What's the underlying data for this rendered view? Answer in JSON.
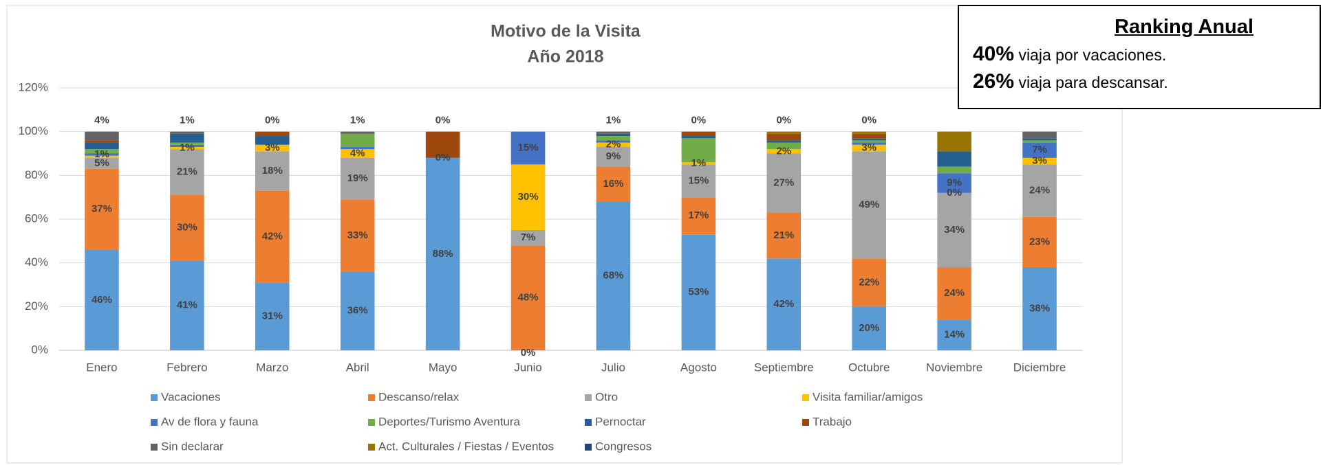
{
  "chart_data": {
    "type": "stacked_bar",
    "title": "Motivo de la Visita",
    "subtitle": "Año 2018",
    "categories": [
      "Enero",
      "Febrero",
      "Marzo",
      "Abril",
      "Mayo",
      "Junio",
      "Julio",
      "Agosto",
      "Septiembre",
      "Octubre",
      "Noviembre",
      "Diciembre"
    ],
    "ylim": [
      0,
      120
    ],
    "yticks": [
      {
        "value": 0,
        "label": "0%"
      },
      {
        "value": 20,
        "label": "20%"
      },
      {
        "value": 40,
        "label": "40%"
      },
      {
        "value": 60,
        "label": "60%"
      },
      {
        "value": 80,
        "label": "80%"
      },
      {
        "value": 100,
        "label": "100%"
      },
      {
        "value": 120,
        "label": "120%"
      }
    ],
    "grid": true,
    "legend": "bottom",
    "series": [
      {
        "name": "Vacaciones",
        "color": "#5b9bd5",
        "values": [
          46,
          41,
          31,
          36,
          88,
          0,
          68,
          53,
          42,
          20,
          14,
          38
        ],
        "value_labels": [
          "46%",
          "41%",
          "31%",
          "36%",
          "88%",
          "0%",
          "68%",
          "53%",
          "42%",
          "20%",
          "14%",
          "38%"
        ]
      },
      {
        "name": "Descanso/relax",
        "color": "#ed7d31",
        "values": [
          37,
          30,
          42,
          33,
          0,
          48,
          16,
          17,
          21,
          22,
          24,
          23
        ],
        "value_labels": [
          "37%",
          "30%",
          "42%",
          "33%",
          "0%",
          "48%",
          "16%",
          "17%",
          "21%",
          "22%",
          "24%",
          "23%"
        ]
      },
      {
        "name": "Otro",
        "color": "#a5a5a5",
        "values": [
          5,
          21,
          18,
          19,
          0,
          7,
          9,
          15,
          27,
          49,
          34,
          24
        ],
        "value_labels": [
          "5%",
          "21%",
          "18%",
          "19%",
          null,
          "7%",
          "9%",
          "15%",
          "27%",
          "49%",
          "34%",
          "24%"
        ]
      },
      {
        "name": "Visita familiar/amigos",
        "color": "#ffc000",
        "values": [
          1,
          1,
          3,
          4,
          0,
          30,
          2,
          1,
          2,
          3,
          0,
          3
        ],
        "value_labels": [
          null,
          "1%",
          "3%",
          "4%",
          null,
          "30%",
          "2%",
          "1%",
          "2%",
          "3%",
          "0%",
          "3%"
        ]
      },
      {
        "name": "Av de flora y fauna",
        "color": "#4472c4",
        "values": [
          1,
          1,
          0,
          1,
          0,
          15,
          1,
          0,
          0,
          1,
          9,
          7
        ],
        "value_labels": [
          "1%",
          null,
          null,
          null,
          null,
          "15%",
          null,
          null,
          null,
          null,
          "9%",
          "7%"
        ]
      },
      {
        "name": "Deportes/Turismo Aventura",
        "color": "#70ad47",
        "values": [
          2,
          1,
          0,
          6,
          0,
          0,
          2,
          11,
          3,
          1,
          3,
          1
        ]
      },
      {
        "name": "Pernoctar",
        "color": "#255e91",
        "values": [
          3,
          4,
          4,
          0,
          0,
          0,
          1,
          1,
          1,
          1,
          7,
          1
        ]
      },
      {
        "name": "Trabajo",
        "color": "#9e480e",
        "values": [
          1,
          0,
          2,
          0,
          12,
          0,
          0,
          2,
          3,
          2,
          0,
          0
        ]
      },
      {
        "name": "Sin declarar",
        "color": "#636363",
        "values": [
          4,
          1,
          0,
          1,
          0,
          0,
          1,
          0,
          0,
          0,
          0,
          3
        ],
        "value_labels": [
          "4%",
          "1%",
          "0%",
          "1%",
          "0%",
          null,
          "1%",
          "0%",
          "0%",
          "0%",
          null,
          null
        ]
      },
      {
        "name": "Act. Culturales / Fiestas / Eventos",
        "color": "#997300",
        "values": [
          0,
          0,
          0,
          0,
          0,
          0,
          0,
          0,
          1,
          1,
          9,
          0
        ]
      },
      {
        "name": "Congresos",
        "color": "#264478",
        "values": [
          0,
          0,
          0,
          0,
          0,
          0,
          0,
          0,
          0,
          0,
          0,
          0
        ]
      }
    ]
  },
  "ranking": {
    "title": "Ranking Anual",
    "items": [
      {
        "value": "40%",
        "text": "viaja por vacaciones."
      },
      {
        "value": "26%",
        "text": "viaja para descansar."
      }
    ]
  }
}
